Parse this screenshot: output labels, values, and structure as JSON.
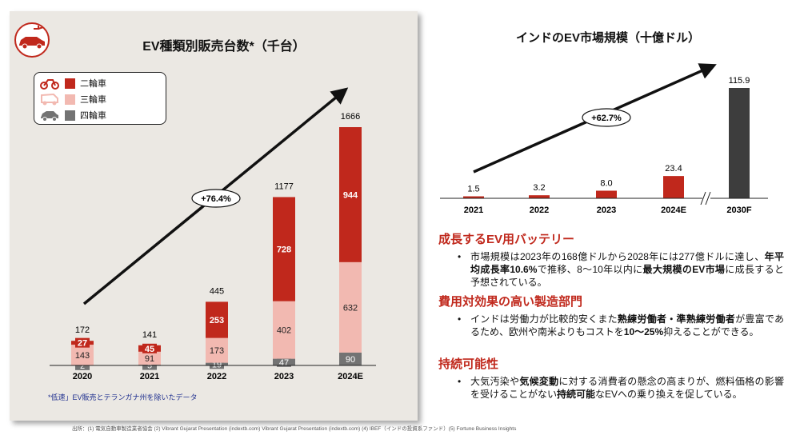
{
  "left": {
    "title": "EV種類別販売台数*（千台）",
    "legend": [
      {
        "label": "二輪車",
        "color": "#c0281c",
        "icon": "motorcycle-icon"
      },
      {
        "label": "三輪車",
        "color": "#f2b9b1",
        "icon": "auto-rickshaw-icon"
      },
      {
        "label": "四輪車",
        "color": "#737373",
        "icon": "car-icon"
      }
    ],
    "cagr_label": "+76.4%",
    "footnote": "*低速」EV販売とテランガナ州を除いたデータ"
  },
  "right": {
    "title": "インドのEV市場規模（十億ドル）",
    "cagr_label": "+62.7%",
    "sections": [
      {
        "heading": "成長するEV用バッテリー",
        "parts": [
          {
            "t": "市場規模は2023年の168億ドルから2028年には277億ドルに達し、",
            "b": false
          },
          {
            "t": "年平均成長率10.6%",
            "b": true
          },
          {
            "t": "で推移、8～10年以内に",
            "b": false
          },
          {
            "t": "最大規模のEV市場",
            "b": true
          },
          {
            "t": "に成長すると予想されている。",
            "b": false
          }
        ]
      },
      {
        "heading": "費用対効果の高い製造部門",
        "parts": [
          {
            "t": "インドは労働力が比較的安くまた",
            "b": false
          },
          {
            "t": "熟練労働者・準熟練労働者",
            "b": true
          },
          {
            "t": "が豊富であるため、欧州や南米よりもコストを",
            "b": false
          },
          {
            "t": "10～25%",
            "b": true
          },
          {
            "t": "抑えることができる。",
            "b": false
          }
        ]
      },
      {
        "heading": "持続可能性",
        "parts": [
          {
            "t": "大気汚染や",
            "b": false
          },
          {
            "t": "気候変動",
            "b": true
          },
          {
            "t": "に対する消費者の懸念の高まりが、燃料価格の影響を受けることがない",
            "b": false
          },
          {
            "t": "持続可能",
            "b": true
          },
          {
            "t": "なEVへの乗り換えを促している。",
            "b": false
          }
        ]
      }
    ]
  },
  "sources": "出所：(1) 電気自動車製造業者協会 (2) Vibrant Gujarat Presentation (indextb.com) Vibrant Gujarat Presentation (indextb.com) (4) IBEF（インドの投資系ファンド）(5) Fortune Business Insights",
  "chart_data": [
    {
      "type": "bar",
      "stacked": true,
      "title": "EV種類別販売台数*（千台）",
      "categories": [
        "2020",
        "2021",
        "2022",
        "2023",
        "2024E"
      ],
      "series": [
        {
          "name": "四輪車",
          "color": "#737373",
          "values": [
            2,
            5,
            19,
            47,
            90
          ]
        },
        {
          "name": "三輪車",
          "color": "#f2b9b1",
          "values": [
            143,
            91,
            173,
            402,
            632
          ]
        },
        {
          "name": "二輪車",
          "color": "#c0281c",
          "values": [
            27,
            45,
            253,
            728,
            944
          ]
        }
      ],
      "totals": [
        172,
        141,
        445,
        1177,
        1666
      ],
      "ylim": [
        0,
        1666
      ],
      "annotation": "+76.4%"
    },
    {
      "type": "bar",
      "title": "インドのEV市場規模（十億ドル）",
      "categories": [
        "2021",
        "2022",
        "2023",
        "2024E",
        "2030F"
      ],
      "values": [
        1.5,
        3.2,
        8.0,
        23.4,
        115.9
      ],
      "colors": [
        "#c0281c",
        "#c0281c",
        "#c0281c",
        "#c0281c",
        "#3d3d3d"
      ],
      "axis_break_before_last": true,
      "ylim": [
        0,
        115.9
      ],
      "annotation": "+62.7%"
    }
  ]
}
